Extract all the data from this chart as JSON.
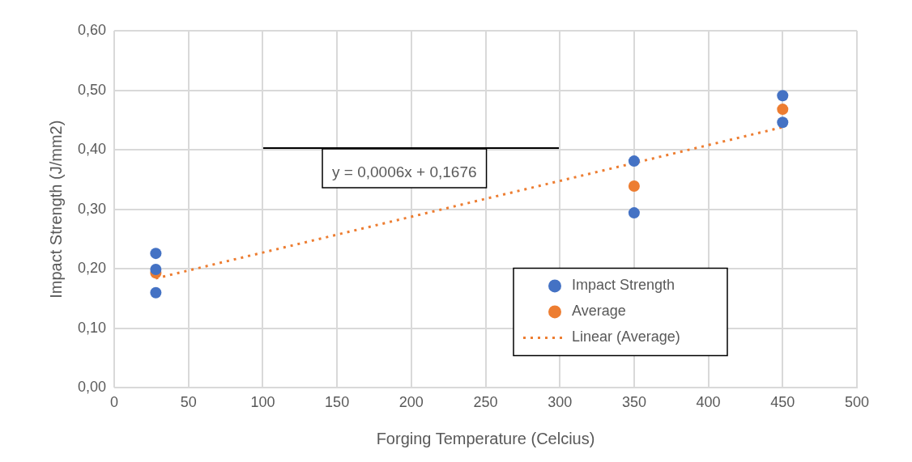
{
  "chart_data": {
    "type": "scatter",
    "xlabel": "Forging Temperature (Celcius)",
    "ylabel": "Impact Strength (J/mm2)",
    "xlim": [
      0,
      500
    ],
    "xticks": [
      0,
      50,
      100,
      150,
      200,
      250,
      300,
      350,
      400,
      450,
      500
    ],
    "ylim": [
      0,
      0.6
    ],
    "yticks": [
      {
        "value": 0,
        "label": "0,00"
      },
      {
        "value": 0.1,
        "label": "0,10"
      },
      {
        "value": 0.2,
        "label": "0,20"
      },
      {
        "value": 0.3,
        "label": "0,30"
      },
      {
        "value": 0.4,
        "label": "0,40"
      },
      {
        "value": 0.5,
        "label": "0,50"
      },
      {
        "value": 0.6,
        "label": "0,60"
      }
    ],
    "grid": true,
    "legend": "right",
    "marker": "circle",
    "annotations": [
      "y = 0,0006x + 0,1676"
    ],
    "series": [
      {
        "name": "Impact Strength",
        "type": "scatter",
        "color": "#4472c4",
        "x": [
          28,
          28,
          28,
          350,
          350,
          450,
          450
        ],
        "values": [
          0.226,
          0.199,
          0.16,
          0.381,
          0.294,
          0.491,
          0.446
        ]
      },
      {
        "name": "Average",
        "type": "scatter",
        "color": "#ed7d31",
        "x": [
          28,
          350,
          450
        ],
        "values": [
          0.193,
          0.339,
          0.468
        ]
      },
      {
        "name": "Linear (Average)",
        "type": "line",
        "line_style": "dotted",
        "marker": "none",
        "color": "#ed7d31",
        "x": [
          28,
          450
        ],
        "values": [
          0.184,
          0.438
        ]
      }
    ]
  }
}
